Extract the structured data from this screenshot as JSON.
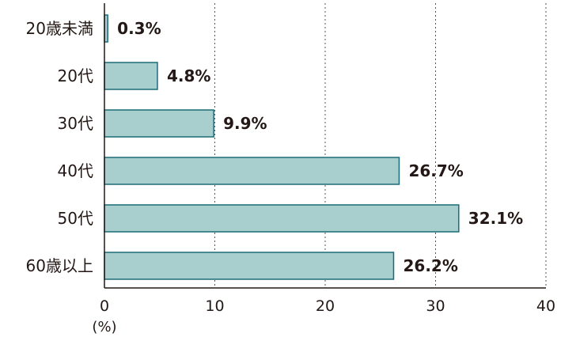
{
  "chart_data": {
    "type": "bar",
    "orientation": "horizontal",
    "categories": [
      "20歳未満",
      "20代",
      "30代",
      "40代",
      "50代",
      "60歳以上"
    ],
    "values": [
      0.3,
      4.8,
      9.9,
      26.7,
      32.1,
      26.2
    ],
    "value_labels": [
      "0.3%",
      "4.8%",
      "9.9%",
      "26.7%",
      "32.1%",
      "26.2%"
    ],
    "xlim": [
      0,
      40
    ],
    "xticks": [
      0,
      10,
      20,
      30,
      40
    ],
    "xtick_labels": [
      "0",
      "10",
      "20",
      "30",
      "40"
    ],
    "xunit": "(%)",
    "grid": "vertical dotted",
    "bar_color": "#a8cfcd",
    "bar_edge_color": "#1d6b78",
    "text_color": "#231815"
  }
}
